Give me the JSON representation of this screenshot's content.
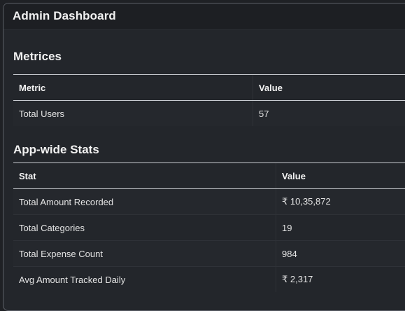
{
  "header": {
    "title": "Admin Dashboard"
  },
  "metrics": {
    "section_title": "Metrices",
    "columns": [
      "Metric",
      "Value"
    ],
    "rows": [
      {
        "metric": "Total Users",
        "value": "57"
      }
    ]
  },
  "stats": {
    "section_title": "App-wide Stats",
    "columns": [
      "Stat",
      "Value"
    ],
    "rows": [
      {
        "stat": "Total Amount Recorded",
        "value": "₹ 10,35,872"
      },
      {
        "stat": "Total Categories",
        "value": "19"
      },
      {
        "stat": "Total Expense Count",
        "value": "984"
      },
      {
        "stat": "Avg Amount Tracked Daily",
        "value": "₹ 2,317"
      }
    ]
  }
}
